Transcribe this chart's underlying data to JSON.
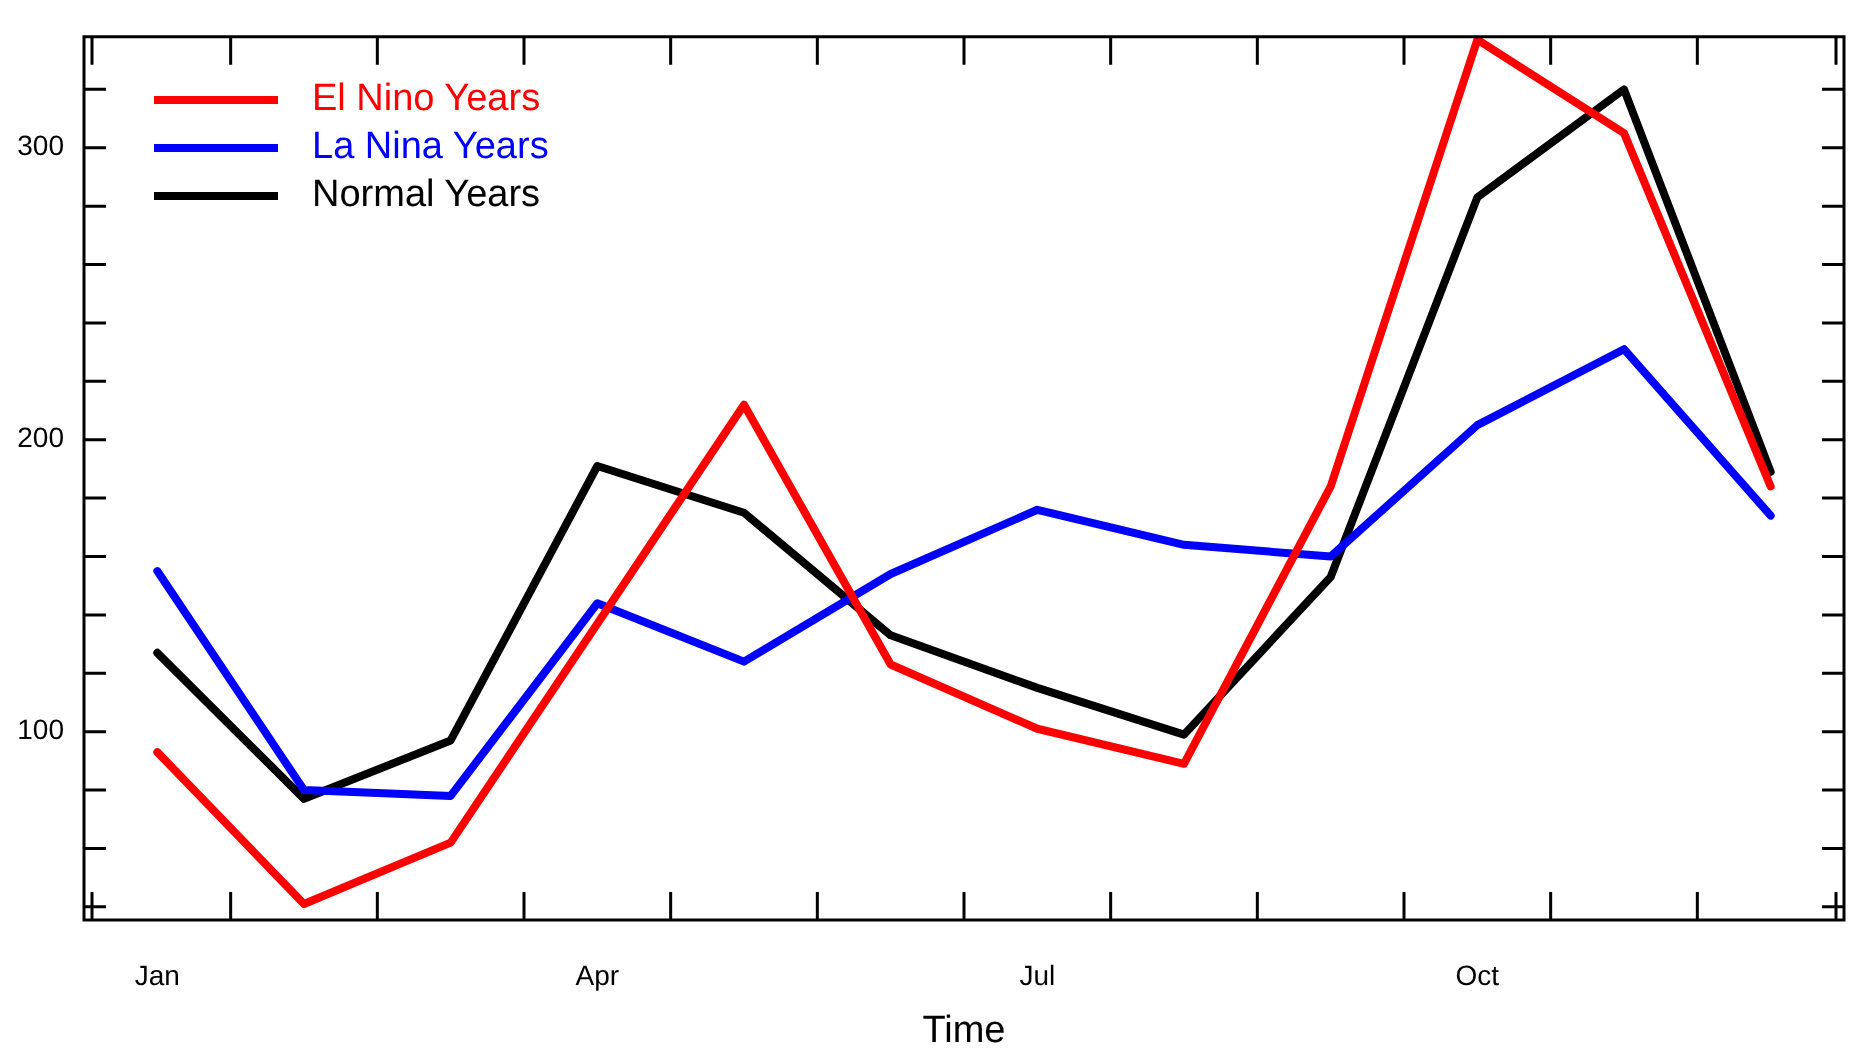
{
  "chart_data": {
    "type": "line",
    "xlabel": "Time",
    "categories": [
      "Jan",
      null,
      null,
      "Apr",
      null,
      null,
      "Jul",
      null,
      null,
      "Oct",
      null,
      null
    ],
    "series": [
      {
        "name": "El Nino Years",
        "color": "#ff0000",
        "values": [
          93,
          41,
          62,
          137,
          212,
          123,
          101,
          89,
          184,
          337,
          305,
          184
        ]
      },
      {
        "name": "La Nina Years",
        "color": "#0000ff",
        "values": [
          155,
          80,
          78,
          144,
          124,
          154,
          176,
          164,
          160,
          205,
          231,
          174
        ]
      },
      {
        "name": "Normal Years",
        "color": "#000000",
        "values": [
          127,
          77,
          97,
          191,
          175,
          133,
          115,
          99,
          153,
          283,
          320,
          189
        ]
      }
    ],
    "ylim": [
      35.5,
      338
    ],
    "yticks": [
      {
        "value": 40,
        "label": null
      },
      {
        "value": 60,
        "label": null
      },
      {
        "value": 80,
        "label": null
      },
      100,
      {
        "value": 120,
        "label": null
      },
      {
        "value": 140,
        "label": null
      },
      {
        "value": 160,
        "label": null
      },
      {
        "value": 180,
        "label": null
      },
      200,
      {
        "value": 220,
        "label": null
      },
      {
        "value": 240,
        "label": null
      },
      {
        "value": 260,
        "label": null
      },
      {
        "value": 280,
        "label": null
      },
      300,
      {
        "value": 320,
        "label": null
      }
    ],
    "legend": "top left",
    "grid": false,
    "marker": "none",
    "line_style": "solid"
  }
}
